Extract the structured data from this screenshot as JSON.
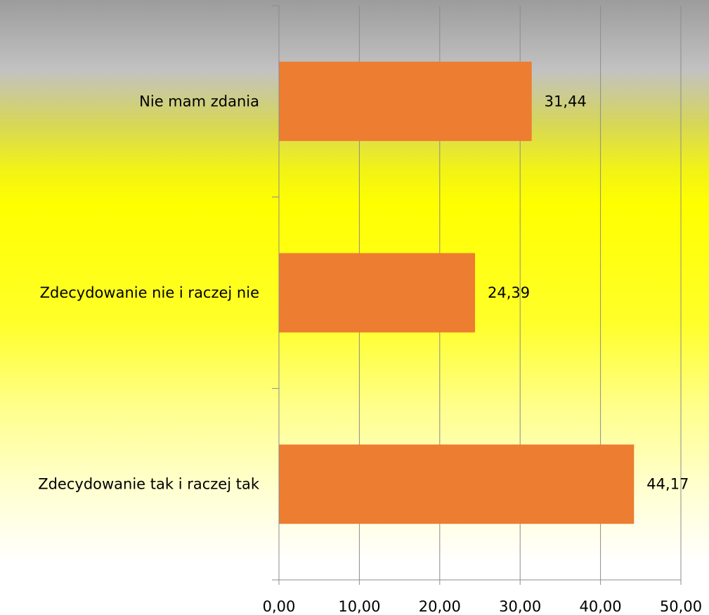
{
  "chart_data": {
    "type": "bar",
    "orientation": "horizontal",
    "categories": [
      "Nie mam zdania",
      "Zdecydowanie nie i raczej nie",
      "Zdecydowanie tak i raczej tak"
    ],
    "values": [
      31.44,
      24.39,
      44.17
    ],
    "value_labels": [
      "31,44",
      "24,39",
      "44,17"
    ],
    "x_ticks": [
      "0,00",
      "10,00",
      "20,00",
      "30,00",
      "40,00",
      "50,00"
    ],
    "xlim": [
      0,
      50
    ],
    "title": "",
    "xlabel": "",
    "ylabel": "",
    "grid": "vertical",
    "legend": "none",
    "bar_color": "#ed7d31",
    "gridline_color": "#8c8c8c",
    "background_gradient": [
      "#9c9c9c",
      "#ffff00",
      "#ffffff"
    ]
  }
}
